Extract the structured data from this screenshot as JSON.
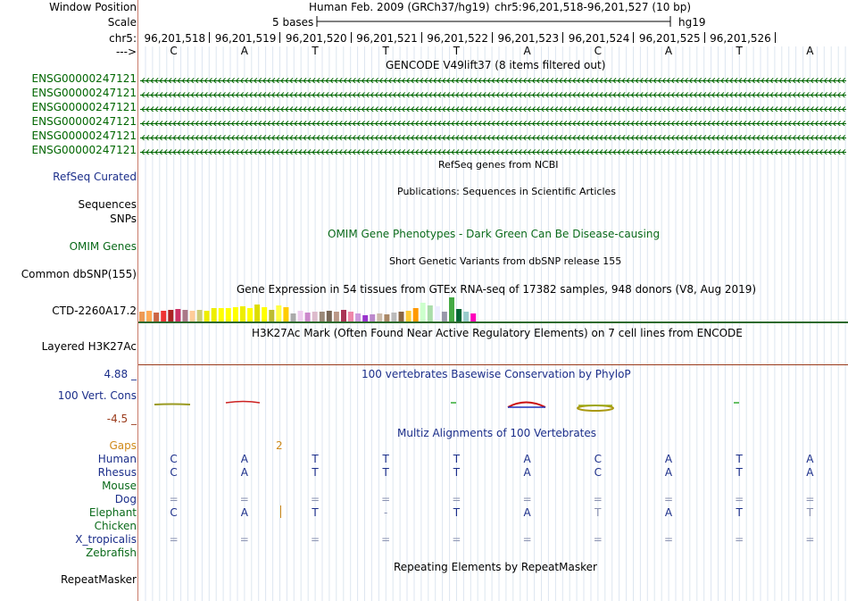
{
  "sidebar": {
    "window_position": "Window Position",
    "scale": "Scale",
    "chrom": "chr5:",
    "strand_arrow": "--->",
    "gene_labels": [
      "ENSG00000247121",
      "ENSG00000247121",
      "ENSG00000247121",
      "ENSG00000247121",
      "ENSG00000247121",
      "ENSG00000247121"
    ],
    "refseq": "RefSeq Curated",
    "sequences": "Sequences",
    "snps": "SNPs",
    "omim": "OMIM Genes",
    "dbsnp": "Common dbSNP(155)",
    "gtex_gene": "CTD-2260A17.2",
    "h3k27ac": "Layered H3K27Ac",
    "phylop_max": "4.88 _",
    "phylop_label": "100 Vert. Cons",
    "phylop_min": "-4.5 _",
    "gaps": "Gaps",
    "species": [
      "Human",
      "Rhesus",
      "Mouse",
      "Dog",
      "Elephant",
      "Chicken",
      "X_tropicalis",
      "Zebrafish"
    ],
    "repeatmasker": "RepeatMasker"
  },
  "header": {
    "assembly": "Human Feb. 2009 (GRCh37/hg19)",
    "position": "chr5:96,201,518-96,201,527 (10 bp)",
    "scale_label": "5 bases",
    "db": "hg19",
    "coords": [
      "96,201,518",
      "96,201,519",
      "96,201,520",
      "96,201,521",
      "96,201,522",
      "96,201,523",
      "96,201,524",
      "96,201,525",
      "96,201,526"
    ]
  },
  "sequence": [
    "C",
    "A",
    "T",
    "T",
    "T",
    "A",
    "C",
    "A",
    "T",
    "A"
  ],
  "tracks": {
    "gencode_title": "GENCODE V49lift37 (8 items filtered out)",
    "refseq_title": "RefSeq genes from NCBI",
    "pubs_title": "Publications: Sequences in Scientific Articles",
    "omim_title": "OMIM Gene Phenotypes - Dark Green Can Be Disease-causing",
    "dbsnp_title": "Short Genetic Variants from dbSNP release 155",
    "gtex_title": "Gene Expression in 54 tissues from GTEx RNA-seq of 17382 samples, 948 donors (V8, Aug 2019)",
    "h3k27ac_title": "H3K27Ac Mark (Often Found Near Active Regulatory Elements) on 7 cell lines from ENCODE",
    "phylop_title": "100 vertebrates Basewise Conservation by PhyloP",
    "multiz_title": "Multiz Alignments of 100 Vertebrates",
    "gap_count": "2",
    "repeat_title": "Repeating Elements by RepeatMasker"
  },
  "alignment": {
    "Human": [
      "C",
      "A",
      "T",
      "T",
      "T",
      "A",
      "C",
      "A",
      "T",
      "A"
    ],
    "Rhesus": [
      "C",
      "A",
      "T",
      "T",
      "T",
      "A",
      "C",
      "A",
      "T",
      "A"
    ],
    "Dog": [
      "=",
      "=",
      "=",
      "=",
      "=",
      "=",
      "=",
      "=",
      "=",
      "="
    ],
    "Elephant": [
      "C",
      "A",
      "T",
      "-",
      "T",
      "A",
      "T",
      "A",
      "T",
      "T"
    ],
    "X_tropicalis": [
      "=",
      "=",
      "=",
      "=",
      "=",
      "=",
      "=",
      "=",
      "=",
      "="
    ]
  },
  "gtex_tissue_colors": [
    "#ee9a55",
    "#ffaa55",
    "#cc6644",
    "#ee3333",
    "#aa2222",
    "#cc3366",
    "#aa7788",
    "#ffcc99",
    "#cccc77",
    "#eeee00",
    "#eeee00",
    "#ffff00",
    "#ffff00",
    "#ffff00",
    "#eeee00",
    "#ffff00",
    "#dddd00",
    "#ffff00",
    "#bbbb33",
    "#ffff44",
    "#ffcc00",
    "#aaaaaa",
    "#eeccee",
    "#cc88cc",
    "#ddbbcc",
    "#998877",
    "#776655",
    "#bb9988",
    "#aa3355",
    "#ee88aa",
    "#cc99dd",
    "#9933cc",
    "#bb88cc",
    "#ccbbaa",
    "#aa8866",
    "#bbbbbb",
    "#886644",
    "#ffcc33",
    "#ff9900",
    "#ccffcc",
    "#aaddaa",
    "#eeeeff",
    "#9999aa",
    "#44aa44",
    "#006633",
    "#99cccc",
    "#ff00bb"
  ],
  "gtex_values": [
    11,
    12,
    10,
    12,
    13,
    14,
    13,
    12,
    13,
    12,
    15,
    15,
    15,
    16,
    17,
    15,
    19,
    16,
    13,
    18,
    16,
    9,
    12,
    10,
    11,
    11,
    12,
    11,
    13,
    11,
    9,
    7,
    8,
    9,
    8,
    10,
    11,
    12,
    15,
    21,
    18,
    17,
    11,
    27,
    14,
    11,
    9
  ],
  "colors": {
    "gene_green": "#006600",
    "label_blue": "#1b2e8a",
    "omim_green": "#0a6a1a",
    "gaps_orange": "#d08a1a",
    "h3k27_green": "#2d6a2d",
    "h3k27_red": "#9a3a1a",
    "divider": "#c87a6a"
  }
}
